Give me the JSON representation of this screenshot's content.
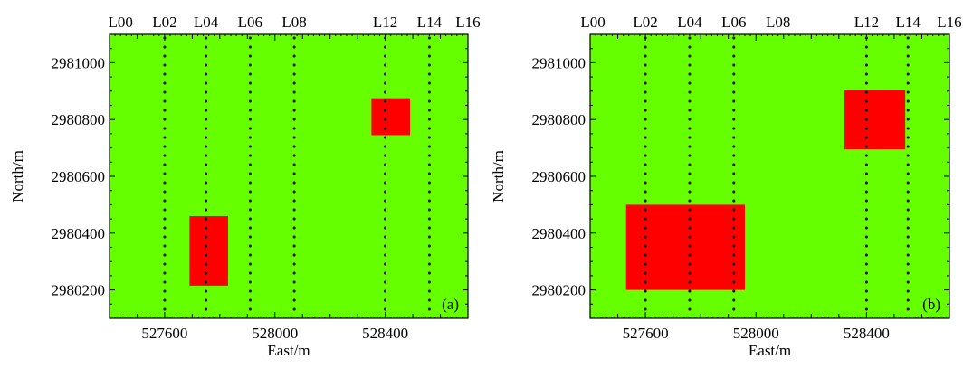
{
  "chart_data": [
    {
      "type": "heatmap",
      "panel_label": "(a)",
      "xlabel": "East/m",
      "ylabel": "North/m",
      "xlim": [
        527400,
        528700
      ],
      "ylim": [
        2980100,
        2981100
      ],
      "x_ticks": [
        527600,
        528000,
        528400
      ],
      "y_ticks": [
        2980200,
        2980400,
        2980600,
        2980800,
        2981000
      ],
      "background_color": "#66ff00",
      "anomaly_color": "#ff0000",
      "survey_lines": [
        {
          "name": "L00",
          "x": 527440,
          "dotted": false
        },
        {
          "name": "L02",
          "x": 527600,
          "dotted": true
        },
        {
          "name": "L04",
          "x": 527750,
          "dotted": true
        },
        {
          "name": "L06",
          "x": 527910,
          "dotted": true
        },
        {
          "name": "L08",
          "x": 528070,
          "dotted": true
        },
        {
          "name": "L12",
          "x": 528400,
          "dotted": true
        },
        {
          "name": "L14",
          "x": 528560,
          "dotted": true
        },
        {
          "name": "L16",
          "x": 528700,
          "dotted": false
        }
      ],
      "anomalies": [
        {
          "x": [
            527690,
            527830
          ],
          "y": [
            2980215,
            2980460
          ]
        },
        {
          "x": [
            528350,
            528490
          ],
          "y": [
            2980745,
            2980875
          ]
        }
      ]
    },
    {
      "type": "heatmap",
      "panel_label": "(b)",
      "xlabel": "East/m",
      "ylabel": "North/m",
      "xlim": [
        527400,
        528700
      ],
      "ylim": [
        2980100,
        2981100
      ],
      "x_ticks": [
        527600,
        528000,
        528400
      ],
      "y_ticks": [
        2980200,
        2980400,
        2980600,
        2980800,
        2981000
      ],
      "background_color": "#66ff00",
      "anomaly_color": "#ff0000",
      "survey_lines": [
        {
          "name": "L00",
          "x": 527410,
          "dotted": false
        },
        {
          "name": "L02",
          "x": 527600,
          "dotted": true
        },
        {
          "name": "L04",
          "x": 527760,
          "dotted": true
        },
        {
          "name": "L06",
          "x": 527920,
          "dotted": true
        },
        {
          "name": "L08",
          "x": 528080,
          "dotted": false
        },
        {
          "name": "L12",
          "x": 528400,
          "dotted": true
        },
        {
          "name": "L14",
          "x": 528550,
          "dotted": true
        },
        {
          "name": "L16",
          "x": 528700,
          "dotted": false
        }
      ],
      "anomalies": [
        {
          "x": [
            527530,
            527960
          ],
          "y": [
            2980200,
            2980500
          ]
        },
        {
          "x": [
            528320,
            528540
          ],
          "y": [
            2980695,
            2980905
          ]
        }
      ]
    }
  ]
}
